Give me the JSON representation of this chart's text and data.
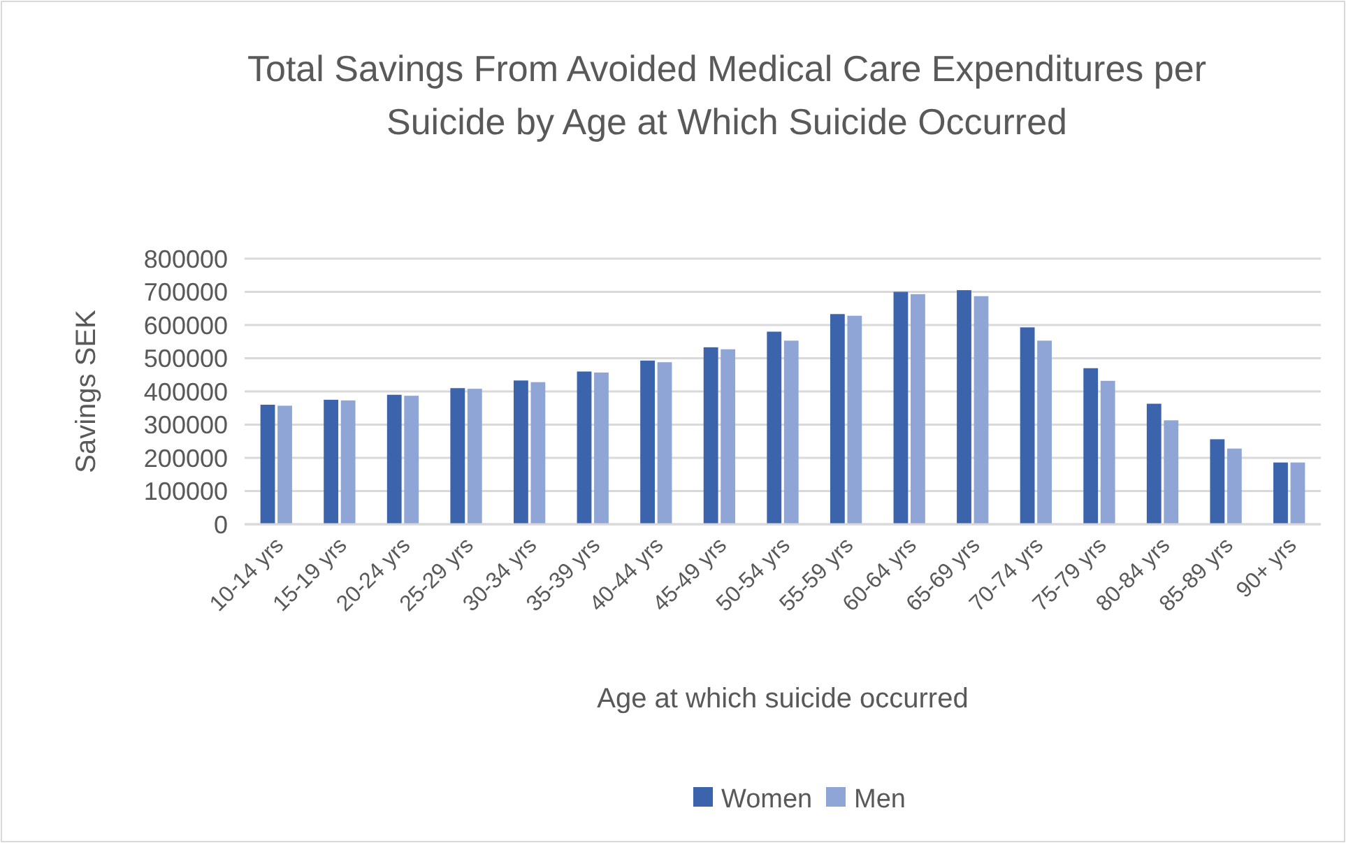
{
  "chart_data": {
    "type": "bar",
    "title": "Total Savings From Avoided Medical Care Expenditures per Suicide by Age at Which Suicide Occurred",
    "xlabel": "Age at which suicide occurred",
    "ylabel": "Savings SEK",
    "categories": [
      "10-14 yrs",
      "15-19 yrs",
      "20-24 yrs",
      "25-29 yrs",
      "30-34 yrs",
      "35-39 yrs",
      "40-44 yrs",
      "45-49 yrs",
      "50-54 yrs",
      "55-59 yrs",
      "60-64 yrs",
      "65-69 yrs",
      "70-74 yrs",
      "75-79 yrs",
      "80-84 yrs",
      "85-89 yrs",
      "90+ yrs"
    ],
    "series": [
      {
        "name": "Women",
        "color": "#3c64ad",
        "values": [
          360000,
          375000,
          390000,
          410000,
          433000,
          460000,
          493000,
          533000,
          580000,
          633000,
          700000,
          705000,
          593000,
          470000,
          363000,
          256000,
          186000
        ]
      },
      {
        "name": "Men",
        "color": "#8fa5d5",
        "values": [
          357000,
          373000,
          387000,
          408000,
          428000,
          457000,
          488000,
          527000,
          553000,
          628000,
          693000,
          687000,
          553000,
          432000,
          313000,
          228000,
          186000
        ]
      }
    ],
    "ylim": [
      0,
      800000
    ],
    "yticks": [
      0,
      100000,
      200000,
      300000,
      400000,
      500000,
      600000,
      700000,
      800000
    ],
    "grid": "y",
    "legend": "bottom"
  }
}
